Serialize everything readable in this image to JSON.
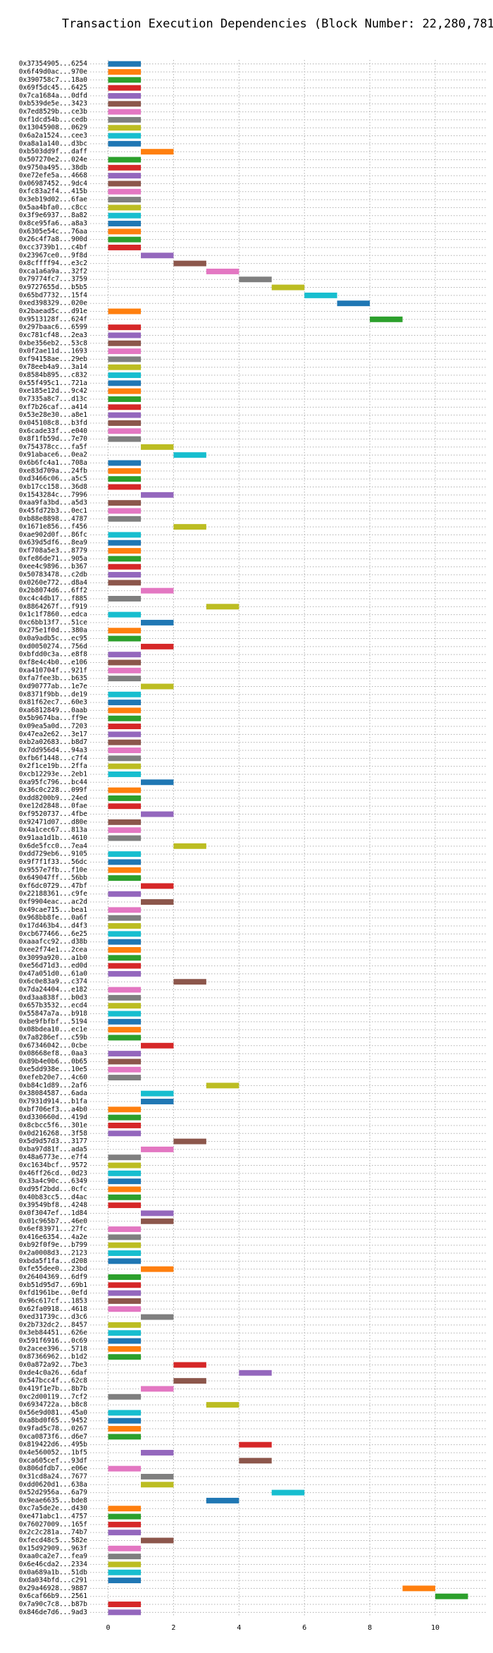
{
  "chart_data": {
    "type": "gantt",
    "title": "Transaction Execution Dependencies (Block Number: 22,280,781)",
    "categories": [
      "0x37354905...6254",
      "0x6f49d0ac...970e",
      "0x390758c7...18a0",
      "0x69f5dc45...6425",
      "0x7ca1684a...0dfd",
      "0xb539de5e...3423",
      "0x7ed8529b...ce3b",
      "0xf1dcd54b...cedb",
      "0x13045908...0629",
      "0x6a2a1524...cee3",
      "0xa8a1a140...d3bc",
      "0xb503dd9f...daff",
      "0x507270e2...024e",
      "0x9750a495...38db",
      "0xe72efe5a...4668",
      "0x06987452...9dc4",
      "0xfc83a2f4...415b",
      "0x3eb19d02...6fae",
      "0x5aa4bfa0...c8cc",
      "0x3f9e6937...8a82",
      "0x8ce95fa6...a8a3",
      "0x6305e54c...76aa",
      "0x26c4f7a8...900d",
      "0xcc3739b1...c4bf",
      "0x23967ce0...9f8d",
      "0x8cffff94...e3c2",
      "0xca1a6a9a...32f2",
      "0x79774fc7...3759",
      "0x9727655d...b5b5",
      "0x65bd7732...15f4",
      "0xed398329...020e",
      "0x2baead5c...d91e",
      "0x9513128f...624f",
      "0x297baac6...6599",
      "0xc781cf48...2ea3",
      "0xbe356eb2...53c8",
      "0x0f2ae11d...1693",
      "0xf94158ae...29eb",
      "0x78eeb4a9...3a14",
      "0x8584b895...c832",
      "0x55f495c1...721a",
      "0xe185e12d...9c42",
      "0x7335a8c7...d13c",
      "0xf7b26caf...a414",
      "0x53e28e30...a8e1",
      "0x045108c8...b3fd",
      "0x6cade33f...e040",
      "0x8f1fb59d...7e70",
      "0x754378cc...fa5f",
      "0x91abace6...0ea2",
      "0x6b6fc4a1...708a",
      "0xe83d709a...24fb",
      "0xd3466c06...a5c5",
      "0xb17cc158...36d8",
      "0x1543284c...7996",
      "0xaa9fa3bd...a5d3",
      "0x45fd72b3...0ec1",
      "0xb88e8898...4787",
      "0x1671e856...f456",
      "0xae902d0f...86fc",
      "0x639d5df6...8ea9",
      "0xf708a5e3...8779",
      "0xfe86de71...905a",
      "0xee4c9896...b367",
      "0x50783478...c2db",
      "0x0260e772...d8a4",
      "0x2b8074d6...6ff2",
      "0xc4c4db17...f885",
      "0x8864267f...f919",
      "0x1c1f7860...edca",
      "0xc6bb13f7...51ce",
      "0x275e1f0d...380a",
      "0x0a9adb5c...ec95",
      "0xd0050274...756d",
      "0xbfdd0c3a...e8f8",
      "0xf8e4c4b0...e106",
      "0xa410704f...921f",
      "0xfa7fee3b...b635",
      "0xd90777ab...1e7e",
      "0x8371f9bb...de19",
      "0x81f62ec7...60e3",
      "0xa6812849...0aab",
      "0x5b9674ba...ff9e",
      "0x09ea5a0d...7203",
      "0x47ea2e62...3e17",
      "0xb2a02683...b8d7",
      "0x7dd956d4...94a3",
      "0xfb6f1448...c7f4",
      "0x2f1ce19b...2ffa",
      "0xcb12293e...2eb1",
      "0xa95fc796...bc44",
      "0x36c0c228...099f",
      "0xdd8200b9...24ed",
      "0xe12d2848...0fae",
      "0xf9520737...4fbe",
      "0x92471d07...d80e",
      "0x4a1cec67...813a",
      "0x91aa1d1b...4610",
      "0x6de5fcc0...7ea4",
      "0xdd729eb6...9105",
      "0x9f7f1f33...56dc",
      "0x9557e7fb...f10e",
      "0x649047ff...56bb",
      "0xf6dc0729...47bf",
      "0x22188361...c9fe",
      "0xf9904eac...ac2d",
      "0x49cae715...bea1",
      "0x968bb8fe...0a6f",
      "0x17d463b4...d4f3",
      "0xcb677466...6e25",
      "0xaaafcc92...d38b",
      "0xee2f74e1...2cea",
      "0x3099a920...a1b0",
      "0xe56d71d3...ed0d",
      "0x47a051d0...61a0",
      "0x6c0e83a9...c374",
      "0x7da24404...e182",
      "0xd3aa838f...b0d3",
      "0x657b3532...ecd4",
      "0x55847a7a...b918",
      "0xbe9fbfbf...5194",
      "0x08bdea10...ec1e",
      "0x7a8286ef...c59b",
      "0x67346042...0cbe",
      "0x08668ef8...0aa3",
      "0x89b4e0b6...0b65",
      "0xe5dd938e...10e5",
      "0xefeb20e7...4c60",
      "0xb84c1d89...2af6",
      "0x38084587...6ada",
      "0x7931d914...b1fa",
      "0xbf706ef3...a4b0",
      "0xd330660d...419d",
      "0x8cbcc5f6...301e",
      "0x0d216268...3f58",
      "0x5d9d57d3...3177",
      "0xba97d81f...ada5",
      "0x48a6773e...e7f4",
      "0xc1634bcf...9572",
      "0x46ff26cd...0d23",
      "0x33a4c90c...6349",
      "0xd95f2bdd...0cfc",
      "0x40b83cc5...d4ac",
      "0x39549bf8...4248",
      "0x0f3047ef...1d84",
      "0x01c965b7...46e0",
      "0x6ef83971...27fc",
      "0x416e6354...4a2e",
      "0xb92f0f9e...b799",
      "0x2a0008d3...2123",
      "0xbda5f1fa...d208",
      "0xfe55dee0...23bd",
      "0x26404369...6df9",
      "0xb51d95d7...69b1",
      "0xfd1961be...0efd",
      "0x96c617cf...1853",
      "0x62fa0918...4618",
      "0xed31739c...d3c6",
      "0x2b732dc2...8457",
      "0x3eb84451...626e",
      "0x591f6916...0c69",
      "0x2acee396...5718",
      "0x87366962...b1d2",
      "0x0a872a92...7be3",
      "0xde4c0a26...6daf",
      "0x547bcc4f...62c8",
      "0x419f1e7b...8b7b",
      "0xc2d00119...7cf2",
      "0x6934722a...b8c8",
      "0x56e9d081...45a0",
      "0xa8bd0f65...9452",
      "0x9fad5c78...0267",
      "0xca0873f6...d6e7",
      "0x819422d6...495b",
      "0x4e560052...1bf5",
      "0xca605cef...93df",
      "0x806dfdb7...e06e",
      "0x31cd8a24...7677",
      "0xdd0620d1...638a",
      "0x52d2956a...6a79",
      "0x9eae6635...bde8",
      "0xc7a5de2e...d430",
      "0xe471abc1...4757",
      "0x76027009...165f",
      "0x2c2c281a...74b7",
      "0xfecd48c5...582e",
      "0x15d92909...963f",
      "0xaa0ca2e7...fea9",
      "0x6e46cda2...2334",
      "0x0a689a1b...51db",
      "0xda034bfd...c291",
      "0x29a46928...9887",
      "0x6caf66b9...2561",
      "0x7a90c7c8...b87b",
      "0x846de7d6...9ad3"
    ],
    "start": [
      0,
      0,
      0,
      0,
      0,
      0,
      0,
      0,
      0,
      0,
      0,
      1,
      0,
      0,
      0,
      0,
      0,
      0,
      0,
      0,
      0,
      0,
      0,
      0,
      1,
      2,
      3,
      4,
      5,
      6,
      7,
      0,
      8,
      0,
      0,
      0,
      0,
      0,
      0,
      0,
      0,
      0,
      0,
      0,
      0,
      0,
      0,
      0,
      1,
      2,
      0,
      0,
      0,
      0,
      1,
      0,
      0,
      0,
      2,
      0,
      0,
      0,
      0,
      0,
      0,
      0,
      1,
      0,
      3,
      0,
      1,
      0,
      0,
      1,
      0,
      0,
      0,
      0,
      1,
      0,
      0,
      0,
      0,
      0,
      0,
      0,
      0,
      0,
      0,
      0,
      1,
      0,
      0,
      0,
      1,
      0,
      0,
      0,
      2,
      0,
      0,
      0,
      0,
      1,
      0,
      1,
      0,
      0,
      0,
      0,
      0,
      0,
      0,
      0,
      0,
      2,
      0,
      0,
      0,
      0,
      0,
      0,
      0,
      1,
      0,
      0,
      0,
      0,
      3,
      1,
      1,
      0,
      0,
      0,
      0,
      2,
      1,
      0,
      0,
      0,
      0,
      0,
      0,
      0,
      1,
      1,
      0,
      0,
      0,
      0,
      0,
      1,
      0,
      0,
      0,
      0,
      0,
      1,
      0,
      0,
      0,
      0,
      0,
      2,
      4,
      2,
      1,
      0,
      3,
      0,
      0,
      0,
      0,
      4,
      1,
      4,
      0,
      1,
      1,
      5,
      3,
      0,
      0,
      0,
      0,
      1,
      0,
      0,
      0,
      0,
      0,
      9,
      10,
      0,
      0
    ],
    "end": [
      1,
      1,
      1,
      1,
      1,
      1,
      1,
      1,
      1,
      1,
      1,
      2,
      1,
      1,
      1,
      1,
      1,
      1,
      1,
      1,
      1,
      1,
      1,
      1,
      2,
      3,
      4,
      5,
      6,
      7,
      8,
      1,
      9,
      1,
      1,
      1,
      1,
      1,
      1,
      1,
      1,
      1,
      1,
      1,
      1,
      1,
      1,
      1,
      2,
      3,
      1,
      1,
      1,
      1,
      2,
      1,
      1,
      1,
      3,
      1,
      1,
      1,
      1,
      1,
      1,
      1,
      2,
      1,
      4,
      1,
      2,
      1,
      1,
      2,
      1,
      1,
      1,
      1,
      2,
      1,
      1,
      1,
      1,
      1,
      1,
      1,
      1,
      1,
      1,
      1,
      2,
      1,
      1,
      1,
      2,
      1,
      1,
      1,
      3,
      1,
      1,
      1,
      1,
      2,
      1,
      2,
      1,
      1,
      1,
      1,
      1,
      1,
      1,
      1,
      1,
      3,
      1,
      1,
      1,
      1,
      1,
      1,
      1,
      2,
      1,
      1,
      1,
      1,
      4,
      2,
      2,
      1,
      1,
      1,
      1,
      3,
      2,
      1,
      1,
      1,
      1,
      1,
      1,
      1,
      2,
      2,
      1,
      1,
      1,
      1,
      1,
      2,
      1,
      1,
      1,
      1,
      1,
      2,
      1,
      1,
      1,
      1,
      1,
      3,
      5,
      3,
      2,
      1,
      4,
      1,
      1,
      1,
      1,
      5,
      2,
      5,
      1,
      2,
      2,
      6,
      4,
      1,
      1,
      1,
      1,
      2,
      1,
      1,
      1,
      1,
      1,
      10,
      11,
      1,
      1
    ],
    "colors": [
      "#1f77b4",
      "#ff7f0e",
      "#2ca02c",
      "#d62728",
      "#9467bd",
      "#8c564b",
      "#e377c2",
      "#7f7f7f",
      "#bcbd22",
      "#17becf"
    ],
    "xlim": [
      -0.55,
      11.55
    ],
    "xticks": [
      0,
      2,
      4,
      6,
      8,
      10
    ],
    "grid": true
  }
}
